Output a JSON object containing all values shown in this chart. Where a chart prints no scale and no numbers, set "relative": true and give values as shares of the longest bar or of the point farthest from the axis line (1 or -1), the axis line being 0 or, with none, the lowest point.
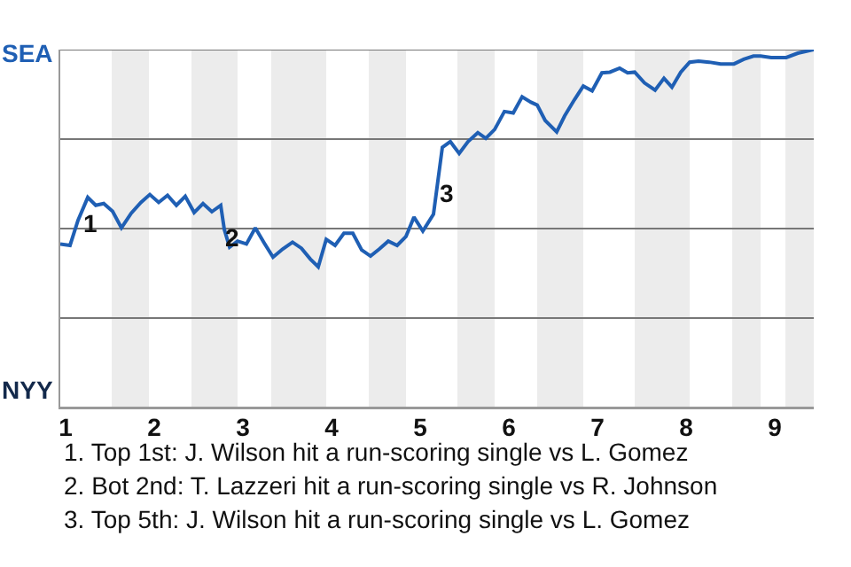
{
  "chart_data": {
    "type": "line",
    "relative": true,
    "x": [
      0.94,
      1.05,
      1.14,
      1.25,
      1.34,
      1.43,
      1.53,
      1.63,
      1.74,
      1.85,
      1.95,
      2.05,
      2.15,
      2.25,
      2.35,
      2.45,
      2.55,
      2.65,
      2.75,
      2.79,
      2.85,
      2.94,
      3.04,
      3.14,
      3.24,
      3.34,
      3.45,
      3.56,
      3.66,
      3.76,
      3.85,
      3.94,
      4.04,
      4.14,
      4.24,
      4.34,
      4.44,
      4.54,
      4.64,
      4.74,
      4.84,
      4.93,
      5.03,
      5.15,
      5.25,
      5.34,
      5.44,
      5.54,
      5.65,
      5.74,
      5.84,
      5.95,
      6.05,
      6.15,
      6.25,
      6.32,
      6.41,
      6.54,
      6.63,
      6.74,
      6.84,
      6.94,
      7.05,
      7.14,
      7.25,
      7.34,
      7.42,
      7.53,
      7.65,
      7.75,
      7.84,
      7.94,
      8.04,
      8.14,
      8.26,
      8.39,
      8.54,
      8.65,
      8.76,
      8.84,
      8.96,
      9.13,
      9.26,
      9.44
    ],
    "series": [
      {
        "color": "#1f5fb4",
        "values": [
          0.457,
          0.453,
          0.523,
          0.587,
          0.565,
          0.57,
          0.548,
          0.502,
          0.543,
          0.573,
          0.595,
          0.573,
          0.593,
          0.565,
          0.59,
          0.545,
          0.57,
          0.547,
          0.565,
          0.498,
          0.448,
          0.465,
          0.457,
          0.502,
          0.46,
          0.42,
          0.443,
          0.462,
          0.445,
          0.415,
          0.393,
          0.47,
          0.453,
          0.487,
          0.487,
          0.44,
          0.423,
          0.443,
          0.465,
          0.453,
          0.478,
          0.532,
          0.493,
          0.54,
          0.727,
          0.743,
          0.71,
          0.743,
          0.768,
          0.752,
          0.777,
          0.827,
          0.823,
          0.868,
          0.853,
          0.845,
          0.802,
          0.77,
          0.815,
          0.86,
          0.898,
          0.885,
          0.935,
          0.937,
          0.948,
          0.935,
          0.937,
          0.907,
          0.887,
          0.92,
          0.895,
          0.937,
          0.965,
          0.968,
          0.965,
          0.96,
          0.96,
          0.973,
          0.982,
          0.982,
          0.978,
          0.978,
          0.99,
          1
        ]
      }
    ],
    "xlim": [
      0.94,
      9.44
    ],
    "xticks": [
      1,
      2,
      3,
      4,
      5,
      6,
      7,
      8,
      9
    ],
    "ref_lines": [
      {
        "axis": "y",
        "value": 0,
        "label": "NYY",
        "color": "#999999"
      },
      {
        "axis": "y",
        "value": 0.25,
        "label": null,
        "color": "#777777"
      },
      {
        "axis": "y",
        "value": 0.5,
        "label": null,
        "color": "#777777"
      },
      {
        "axis": "y",
        "value": 0.75,
        "label": null,
        "color": "#777777"
      },
      {
        "axis": "y",
        "value": 1,
        "label": "SEA",
        "color": "#777777"
      }
    ],
    "bands": [
      {
        "axis": "x",
        "from": 1.52,
        "to": 1.94,
        "color": "#ececec"
      },
      {
        "axis": "x",
        "from": 2.42,
        "to": 2.94,
        "color": "#ececec"
      },
      {
        "axis": "x",
        "from": 3.32,
        "to": 3.94,
        "color": "#ececec"
      },
      {
        "axis": "x",
        "from": 4.42,
        "to": 4.84,
        "color": "#ececec"
      },
      {
        "axis": "x",
        "from": 5.42,
        "to": 5.84,
        "color": "#ececec"
      },
      {
        "axis": "x",
        "from": 6.32,
        "to": 6.84,
        "color": "#ececec"
      },
      {
        "axis": "x",
        "from": 7.42,
        "to": 8.04,
        "color": "#ececec"
      },
      {
        "axis": "x",
        "from": 8.52,
        "to": 8.84,
        "color": "#ececec"
      },
      {
        "axis": "x",
        "from": 9.12,
        "to": 9.44,
        "color": "#ececec"
      }
    ],
    "annotations": [
      {
        "text": "1",
        "x": 1.28,
        "y": 0.515
      },
      {
        "text": "2",
        "x": 2.88,
        "y": 0.475
      },
      {
        "text": "3",
        "x": 5.3,
        "y": 0.6
      },
      "1. Top 1st: J. Wilson hit a run-scoring single vs L. Gomez",
      "2. Bot 2nd: T. Lazzeri hit a run-scoring single vs R. Johnson",
      "3. Top 5th: J. Wilson hit a run-scoring single vs L. Gomez"
    ],
    "marker": "none",
    "line_style": "solid"
  }
}
